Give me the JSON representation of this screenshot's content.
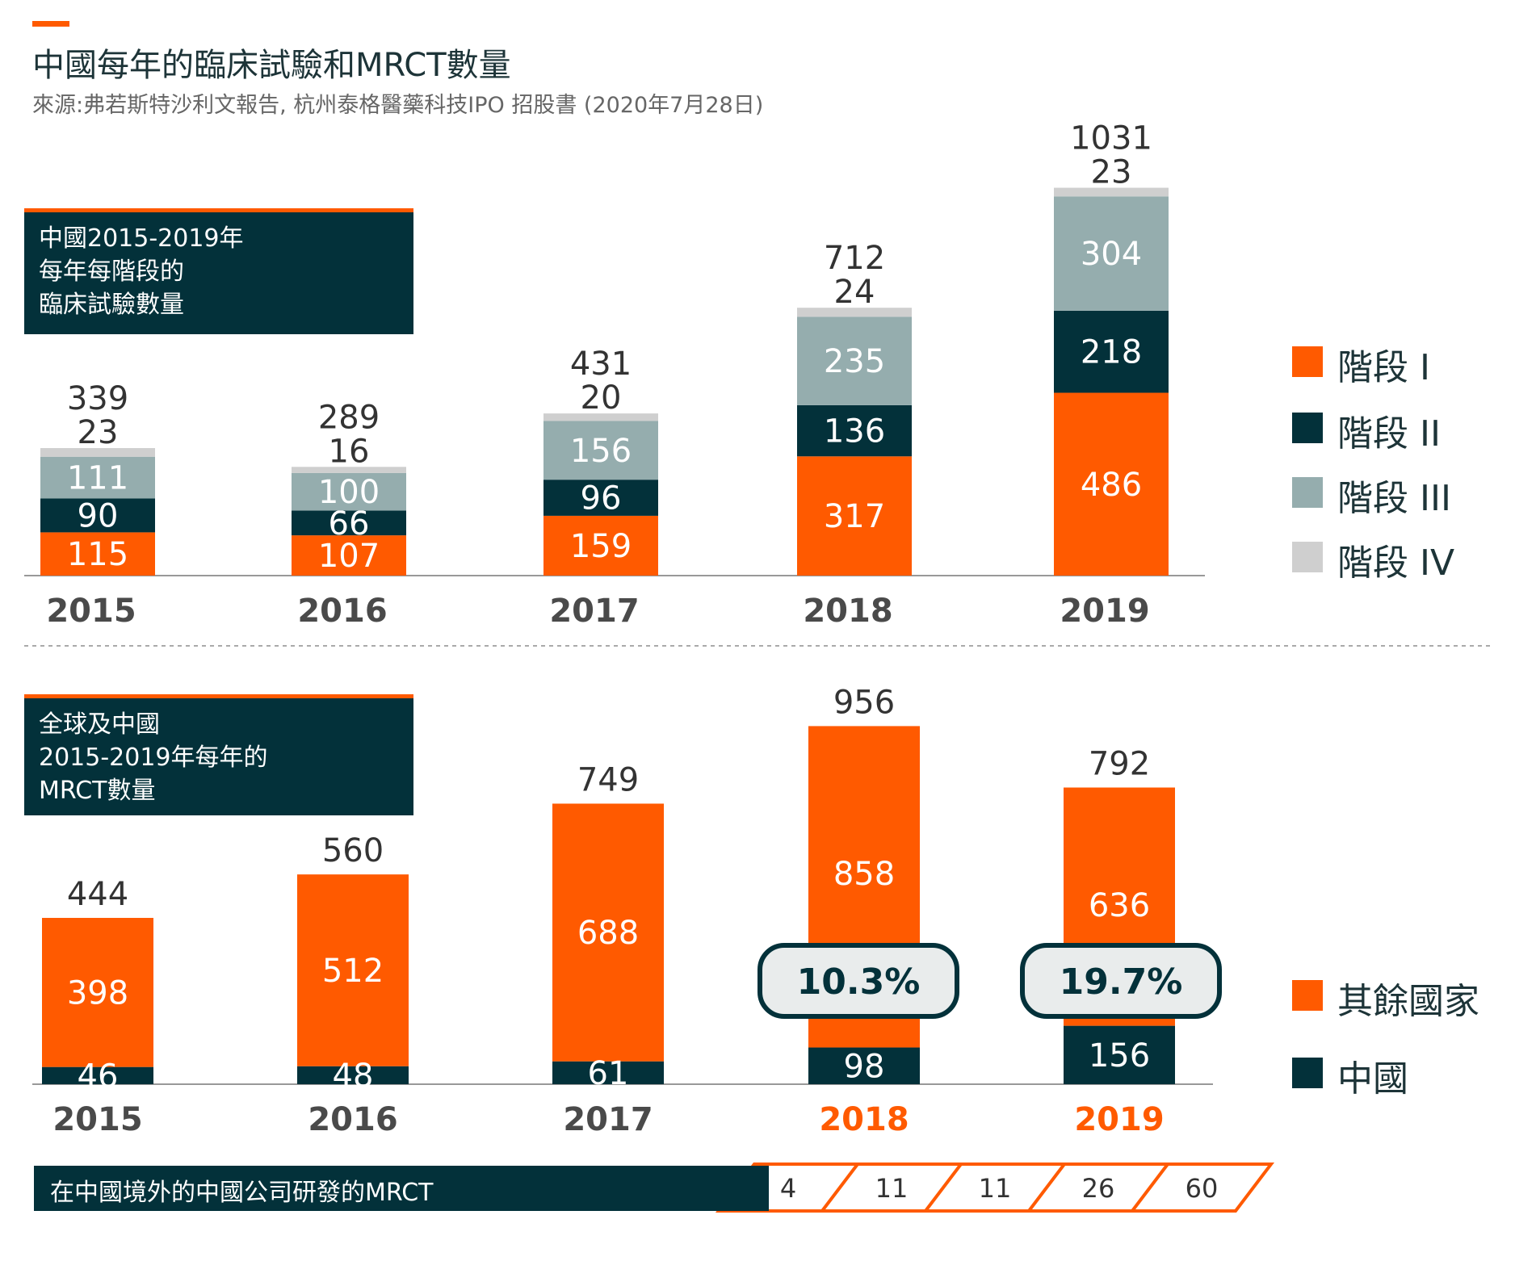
{
  "header": {
    "title": "中國每年的臨床試驗和MRCT數量",
    "source": "來源:弗若斯特沙利文報告, 杭州泰格醫藥科技IPO 招股書 (2020年7月28日)"
  },
  "colors": {
    "orange": "#ff5a00",
    "dark": "#03313a",
    "gray_green": "#95adae",
    "light_gray": "#cfcfcf",
    "axis": "#999999"
  },
  "top_panel": {
    "label_lines": [
      "中國2015-2019年",
      "每年每階段的",
      "臨床試驗數量"
    ],
    "legend": [
      "階段 I",
      "階段 II",
      "階段 III",
      "階段 IV"
    ]
  },
  "bottom_panel": {
    "label_lines": [
      "全球及中國",
      "2015-2019年每年的",
      "MRCT數量"
    ],
    "legend": [
      "其餘國家",
      "中國"
    ],
    "percent_callouts": [
      {
        "year": "2018",
        "text": "10.3%"
      },
      {
        "year": "2019",
        "text": "19.7%"
      }
    ],
    "strip": {
      "label": "在中國境外的中國公司研發的MRCT",
      "values": [
        "4",
        "11",
        "11",
        "26",
        "60"
      ]
    },
    "highlight_years": [
      "2018",
      "2019"
    ]
  },
  "chart_data": [
    {
      "type": "bar",
      "stacked": true,
      "categories": [
        "2015",
        "2016",
        "2017",
        "2018",
        "2019"
      ],
      "series": [
        {
          "name": "階段 I",
          "values": [
            115,
            107,
            159,
            317,
            486
          ]
        },
        {
          "name": "階段 II",
          "values": [
            90,
            66,
            96,
            136,
            218
          ]
        },
        {
          "name": "階段 III",
          "values": [
            111,
            100,
            156,
            235,
            304
          ]
        },
        {
          "name": "階段 IV",
          "values": [
            23,
            16,
            20,
            24,
            23
          ]
        }
      ],
      "totals": [
        339,
        289,
        431,
        712,
        1031
      ],
      "legend_position": "right"
    },
    {
      "type": "bar",
      "stacked": true,
      "categories": [
        "2015",
        "2016",
        "2017",
        "2018",
        "2019"
      ],
      "series": [
        {
          "name": "中國",
          "values": [
            46,
            48,
            61,
            98,
            156
          ]
        },
        {
          "name": "其餘國家",
          "values": [
            398,
            512,
            688,
            858,
            636
          ]
        }
      ],
      "totals": [
        444,
        560,
        749,
        956,
        792
      ],
      "legend_position": "right"
    }
  ]
}
